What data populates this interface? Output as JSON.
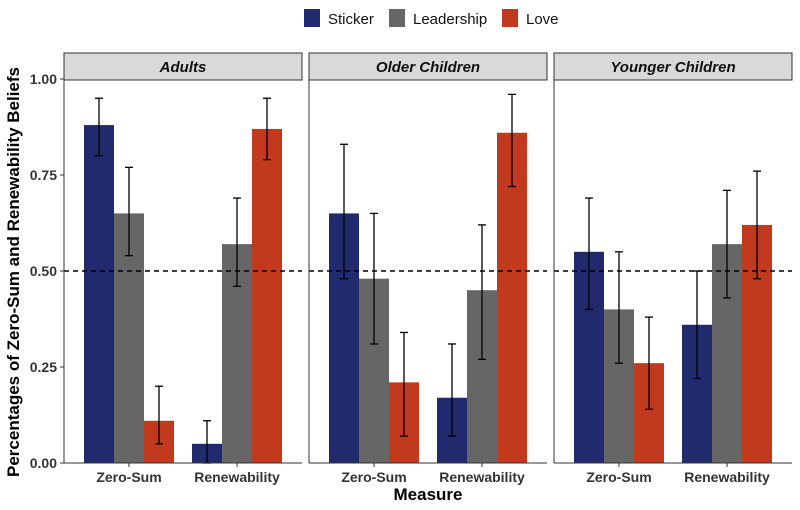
{
  "chart_data": {
    "type": "bar",
    "xlabel": "Measure",
    "ylabel": "Percentages of Zero-Sum and Renewability Beliefs",
    "ylim": [
      0,
      1
    ],
    "yticks": [
      "0.00",
      "0.25",
      "0.50",
      "0.75",
      "1.00"
    ],
    "reference_line": 0.5,
    "reference_line_style": "dashed",
    "legend_position": "top",
    "grid": false,
    "categories": [
      "Zero-Sum",
      "Renewability"
    ],
    "series_info": [
      {
        "name": "Sticker",
        "color": "#222a6e"
      },
      {
        "name": "Leadership",
        "color": "#666666"
      },
      {
        "name": "Love",
        "color": "#c23a1e"
      }
    ],
    "panels": [
      {
        "title": "Adults",
        "series": [
          {
            "name": "Sticker",
            "values": [
              0.88,
              0.05
            ],
            "ci_low": [
              0.8,
              0.0
            ],
            "ci_high": [
              0.95,
              0.11
            ]
          },
          {
            "name": "Leadership",
            "values": [
              0.65,
              0.57
            ],
            "ci_low": [
              0.54,
              0.46
            ],
            "ci_high": [
              0.77,
              0.69
            ]
          },
          {
            "name": "Love",
            "values": [
              0.11,
              0.87
            ],
            "ci_low": [
              0.05,
              0.79
            ],
            "ci_high": [
              0.2,
              0.95
            ]
          }
        ]
      },
      {
        "title": "Older Children",
        "series": [
          {
            "name": "Sticker",
            "values": [
              0.65,
              0.17
            ],
            "ci_low": [
              0.48,
              0.07
            ],
            "ci_high": [
              0.83,
              0.31
            ]
          },
          {
            "name": "Leadership",
            "values": [
              0.48,
              0.45
            ],
            "ci_low": [
              0.31,
              0.27
            ],
            "ci_high": [
              0.65,
              0.62
            ]
          },
          {
            "name": "Love",
            "values": [
              0.21,
              0.86
            ],
            "ci_low": [
              0.07,
              0.72
            ],
            "ci_high": [
              0.34,
              0.96
            ]
          }
        ]
      },
      {
        "title": "Younger Children",
        "series": [
          {
            "name": "Sticker",
            "values": [
              0.55,
              0.36
            ],
            "ci_low": [
              0.4,
              0.22
            ],
            "ci_high": [
              0.69,
              0.5
            ]
          },
          {
            "name": "Leadership",
            "values": [
              0.4,
              0.57
            ],
            "ci_low": [
              0.26,
              0.43
            ],
            "ci_high": [
              0.55,
              0.71
            ]
          },
          {
            "name": "Love",
            "values": [
              0.26,
              0.62
            ],
            "ci_low": [
              0.14,
              0.48
            ],
            "ci_high": [
              0.38,
              0.76
            ]
          }
        ]
      }
    ]
  }
}
